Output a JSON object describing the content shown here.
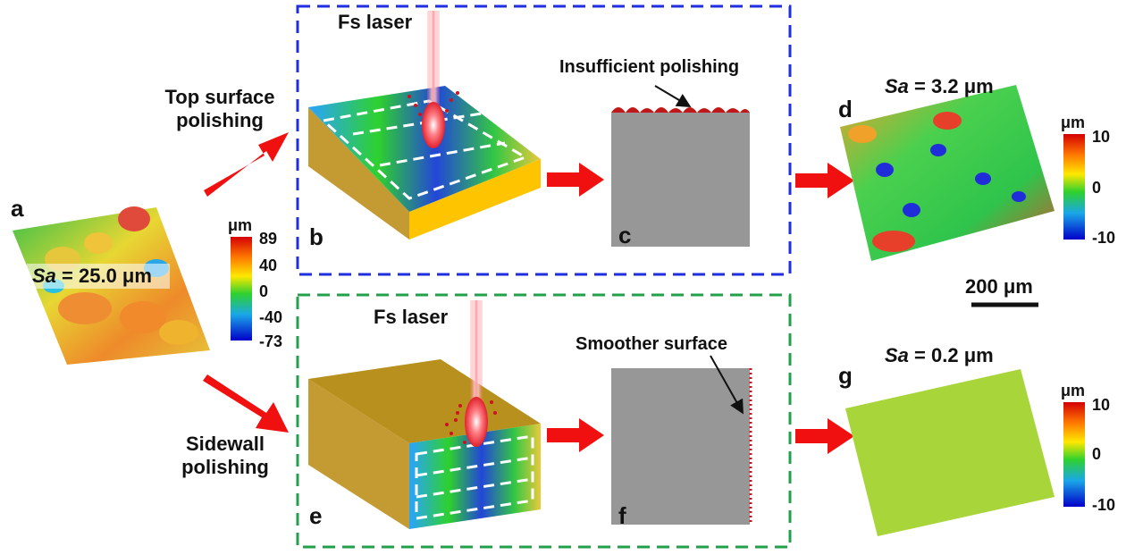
{
  "panels": {
    "a": "a",
    "b": "b",
    "c": "c",
    "d": "d",
    "e": "e",
    "f": "f",
    "g": "g"
  },
  "labels": {
    "fs_laser_top": "Fs laser",
    "fs_laser_bottom": "Fs laser",
    "top_surface_line1": "Top surface",
    "top_surface_line2": "polishing",
    "sidewall_line1": "Sidewall",
    "sidewall_line2": "polishing",
    "insufficient": "Insufficient polishing",
    "smoother": "Smoother surface",
    "scale_bar": "200 μm"
  },
  "sa": {
    "a": {
      "symbol": "Sa",
      "rest": " = 25.0 μm"
    },
    "d": {
      "symbol": "Sa",
      "rest": " = 3.2 μm"
    },
    "g": {
      "symbol": "Sa",
      "rest": " = 0.2 μm"
    }
  },
  "colorbars": {
    "a": {
      "unit": "μm",
      "ticks": [
        "89",
        "40",
        "0",
        "-40",
        "-73"
      ]
    },
    "d": {
      "unit": "μm",
      "ticks": [
        "10",
        "0",
        "-10"
      ]
    },
    "g": {
      "unit": "μm",
      "ticks": [
        "10",
        "0",
        "-10"
      ]
    }
  },
  "colors": {
    "top_box_border": "#1f2ee0",
    "bottom_box_border": "#22a14a",
    "arrow": "#f01010",
    "gold": "#e6b521",
    "gray": "#979797",
    "laser": "#ff4d5a"
  }
}
